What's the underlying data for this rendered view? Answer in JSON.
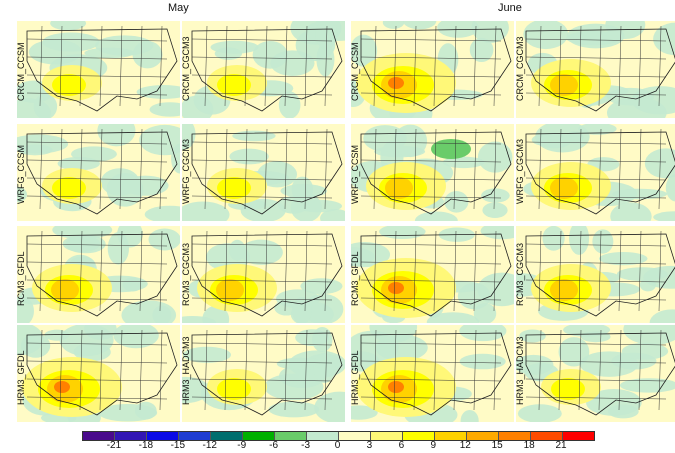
{
  "months": [
    "May",
    "June"
  ],
  "panels": [
    [
      "CRCM_CCSM",
      "CRCM_CGCM3",
      "CRCM_CCSM",
      "CRCM_CGCM3"
    ],
    [
      "WRFG_CCSM",
      "WRFG_CGCM3",
      "WRFG_CCSM",
      "WRFG_CGCM3"
    ],
    [
      "RCM3_GFDL",
      "RCM3_CGCM3",
      "RCM3_GFDL",
      "RCM3_CGCM3"
    ],
    [
      "HRM3_GFDL",
      "HRM3_HADCM3",
      "HRM3_GFDL",
      "HRM3_HADCM3"
    ]
  ],
  "colorbar": {
    "ticks": [
      "-21",
      "-18",
      "-15",
      "-12",
      "-9",
      "-6",
      "-3",
      "0",
      "3",
      "6",
      "9",
      "12",
      "15",
      "18",
      "21"
    ],
    "colors": [
      "#4a0a8c",
      "#3216b4",
      "#0a0ae6",
      "#1e3cd2",
      "#006e6e",
      "#00b000",
      "#6acc6a",
      "#c4ead0",
      "#fffcc4",
      "#fff878",
      "#ffff00",
      "#ffd200",
      "#ffaa00",
      "#ff8000",
      "#ff4b00",
      "#ff0000"
    ]
  }
}
